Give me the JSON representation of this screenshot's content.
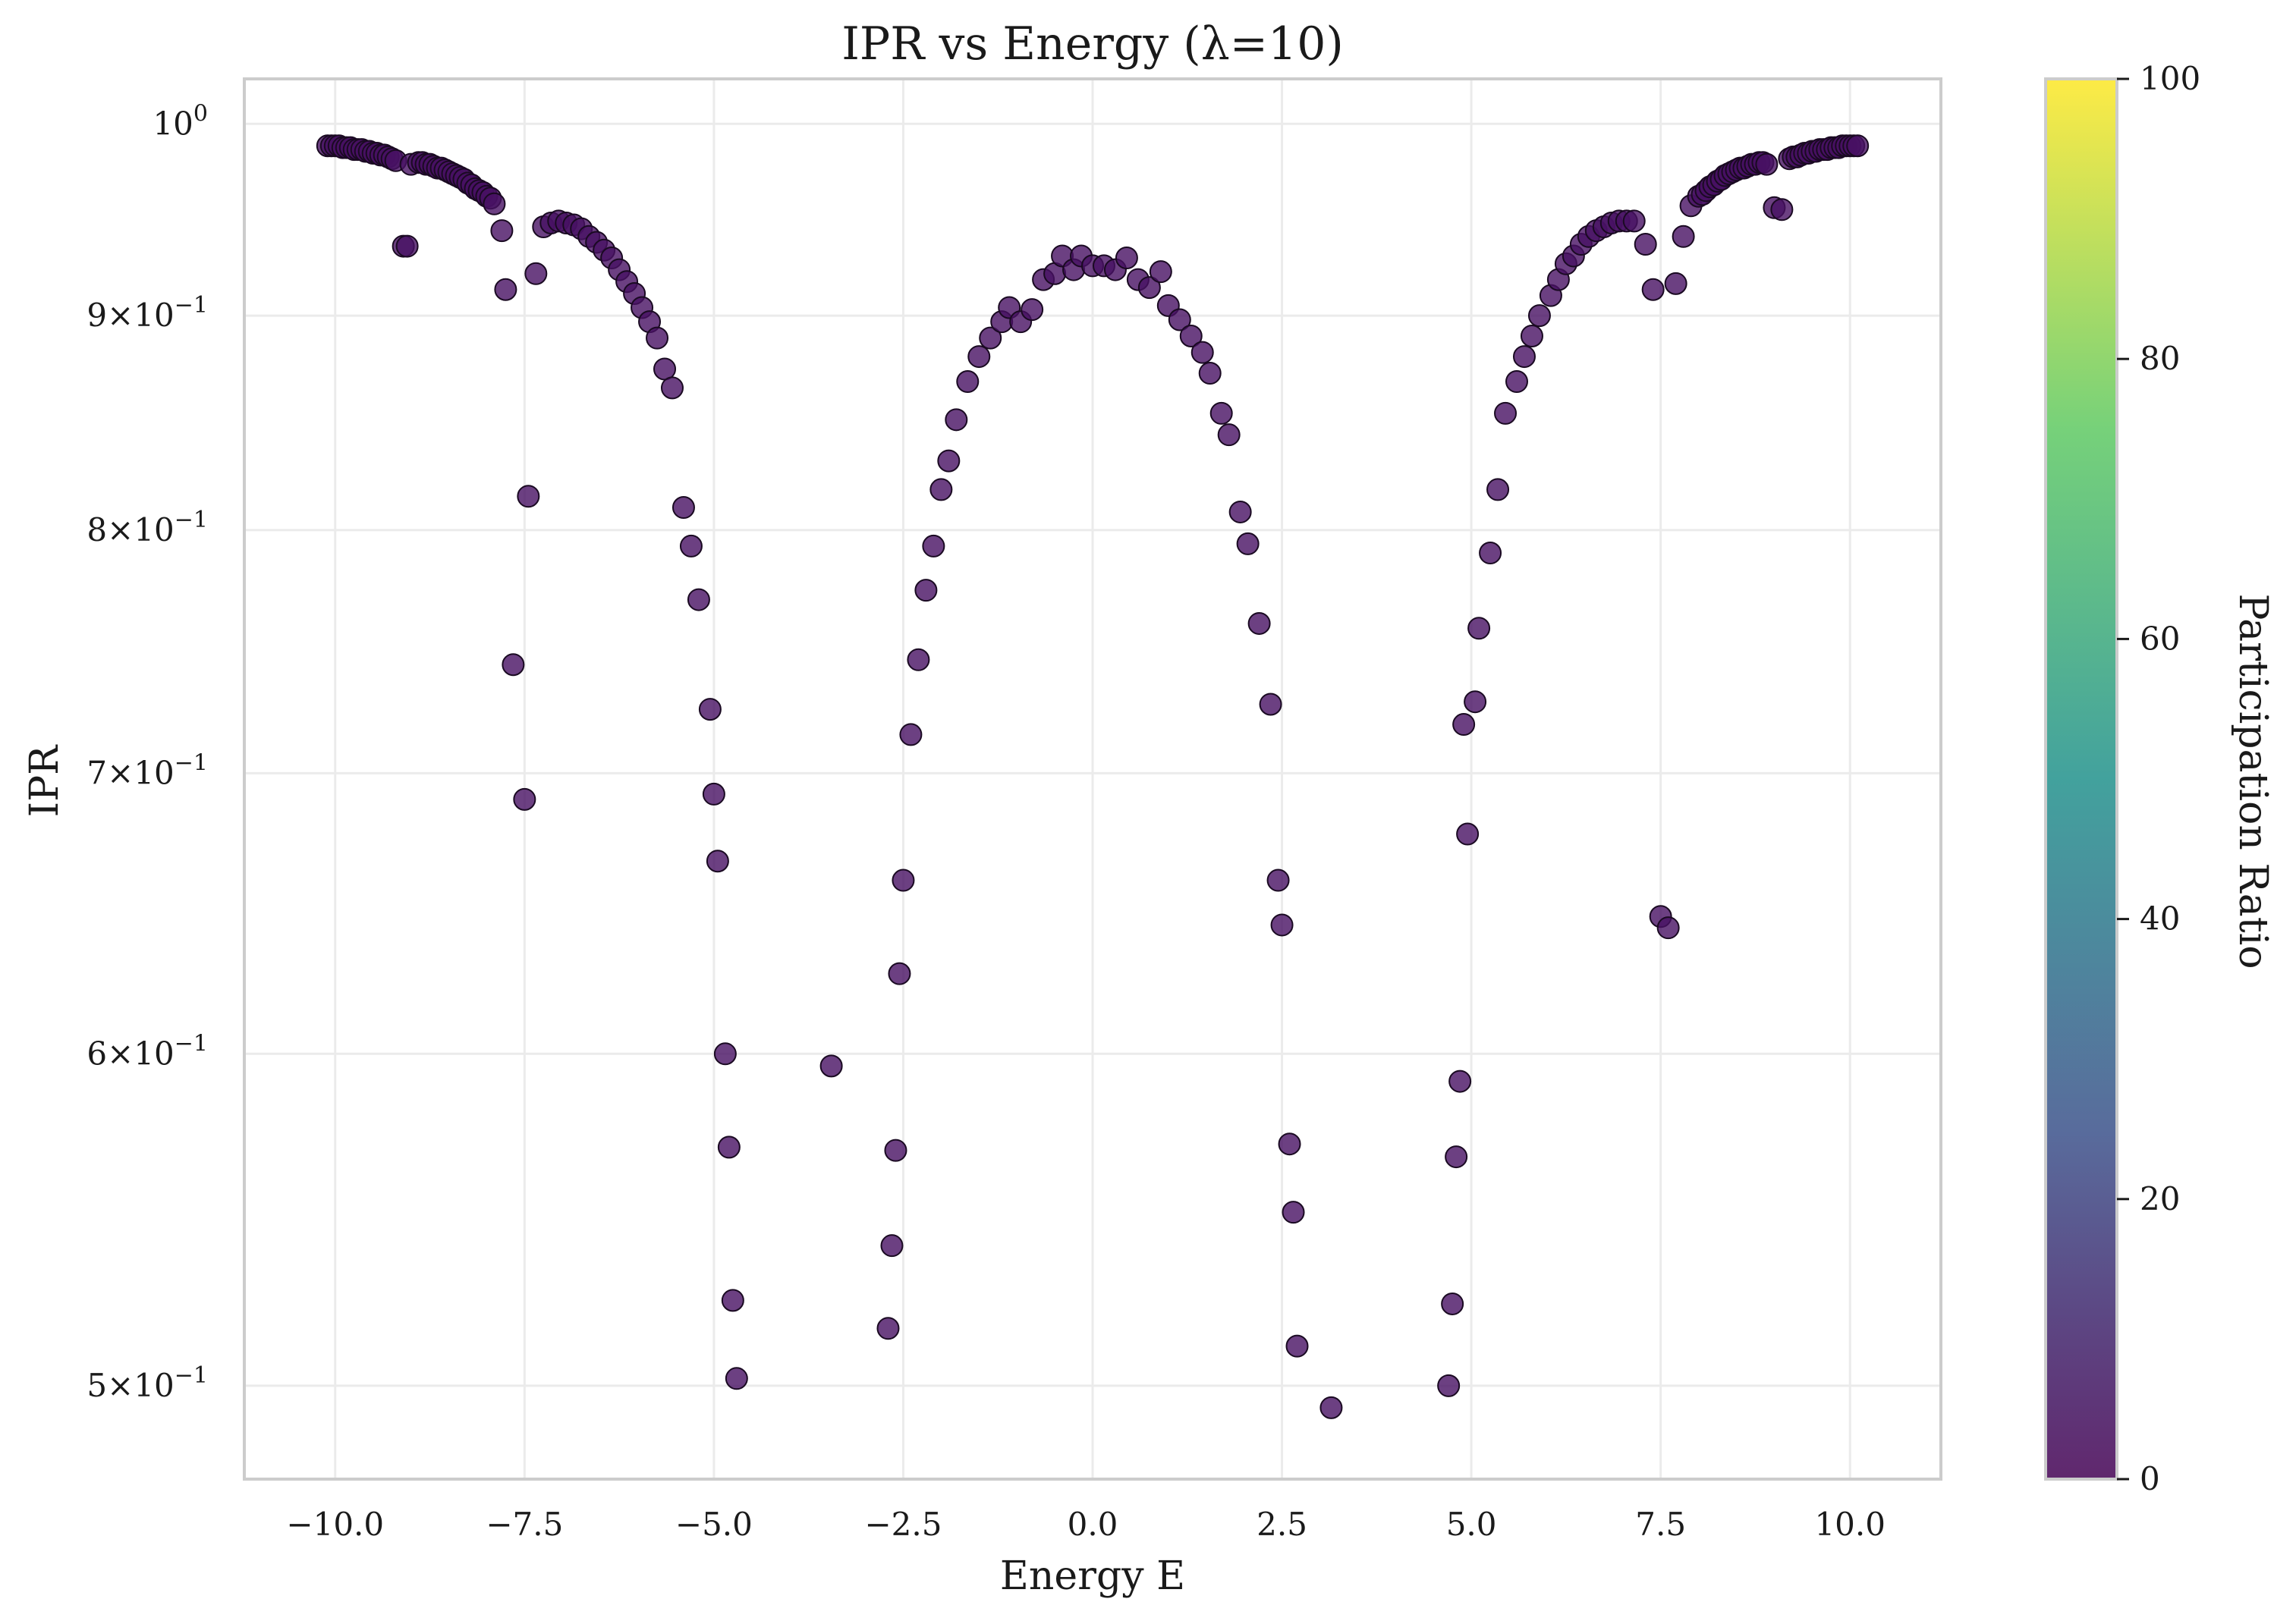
{
  "chart_data": {
    "type": "scatter",
    "title": "IPR vs Energy (λ=10)",
    "xlabel": "Energy E",
    "ylabel": "IPR",
    "colorbar_label": "Participation Ratio",
    "x_range": [
      -11.2,
      11.2
    ],
    "y_range": [
      0.475,
      1.025
    ],
    "y_scale": "log",
    "grid": true,
    "x_ticks": [
      -10.0,
      -7.5,
      -5.0,
      -2.5,
      0.0,
      2.5,
      5.0,
      7.5,
      10.0
    ],
    "x_tick_labels": [
      "−10.0",
      "−7.5",
      "−5.0",
      "−2.5",
      "0.0",
      "2.5",
      "5.0",
      "7.5",
      "10.0"
    ],
    "y_ticks": [
      {
        "value": 1.0,
        "mantissa": "10",
        "exponent": "0",
        "factor": ""
      },
      {
        "value": 0.9,
        "mantissa": "9×10",
        "exponent": "−1",
        "factor": "9"
      },
      {
        "value": 0.8,
        "mantissa": "8×10",
        "exponent": "−1",
        "factor": "8"
      },
      {
        "value": 0.7,
        "mantissa": "7×10",
        "exponent": "−1",
        "factor": "7"
      },
      {
        "value": 0.6,
        "mantissa": "6×10",
        "exponent": "−1",
        "factor": "6"
      },
      {
        "value": 0.5,
        "mantissa": "5×10",
        "exponent": "−1",
        "factor": "5"
      }
    ],
    "colorbar_range": [
      0,
      100
    ],
    "colorbar_ticks": [
      "0",
      "20",
      "40",
      "60",
      "80",
      "100"
    ],
    "colormap": [
      "#440154",
      "#3b528b",
      "#21918c",
      "#5ec962",
      "#fde725"
    ],
    "marker_color": "#471063",
    "marker_edge_color": "#1a0a22",
    "series": [
      {
        "points": [
          [
            -10.1,
            0.988
          ],
          [
            -10.05,
            0.988
          ],
          [
            -10.0,
            0.988
          ],
          [
            -9.95,
            0.988
          ],
          [
            -9.9,
            0.987
          ],
          [
            -9.85,
            0.987
          ],
          [
            -9.8,
            0.987
          ],
          [
            -9.75,
            0.986
          ],
          [
            -9.7,
            0.986
          ],
          [
            -9.65,
            0.986
          ],
          [
            -9.6,
            0.985
          ],
          [
            -9.55,
            0.985
          ],
          [
            -9.5,
            0.984
          ],
          [
            -9.45,
            0.984
          ],
          [
            -9.4,
            0.983
          ],
          [
            -9.35,
            0.983
          ],
          [
            -9.3,
            0.982
          ],
          [
            -9.25,
            0.981
          ],
          [
            -9.2,
            0.98
          ],
          [
            -9.1,
            0.935
          ],
          [
            -9.05,
            0.935
          ],
          [
            -9.0,
            0.978
          ],
          [
            -8.9,
            0.979
          ],
          [
            -8.85,
            0.979
          ],
          [
            -8.8,
            0.978
          ],
          [
            -8.75,
            0.978
          ],
          [
            -8.7,
            0.977
          ],
          [
            -8.65,
            0.976
          ],
          [
            -8.6,
            0.976
          ],
          [
            -8.55,
            0.975
          ],
          [
            -8.5,
            0.974
          ],
          [
            -8.45,
            0.973
          ],
          [
            -8.4,
            0.972
          ],
          [
            -8.35,
            0.971
          ],
          [
            -8.3,
            0.97
          ],
          [
            -8.25,
            0.968
          ],
          [
            -8.2,
            0.967
          ],
          [
            -8.15,
            0.965
          ],
          [
            -8.1,
            0.964
          ],
          [
            -8.05,
            0.963
          ],
          [
            -8.0,
            0.961
          ],
          [
            -7.95,
            0.96
          ],
          [
            -7.9,
            0.957
          ],
          [
            -7.8,
            0.943
          ],
          [
            -7.75,
            0.913
          ],
          [
            -7.65,
            0.743
          ],
          [
            -7.5,
            0.69
          ],
          [
            -7.45,
            0.815
          ],
          [
            -7.35,
            0.921
          ],
          [
            -7.25,
            0.945
          ],
          [
            -7.15,
            0.947
          ],
          [
            -7.05,
            0.948
          ],
          [
            -6.95,
            0.947
          ],
          [
            -6.85,
            0.946
          ],
          [
            -6.75,
            0.944
          ],
          [
            -6.65,
            0.94
          ],
          [
            -6.55,
            0.937
          ],
          [
            -6.45,
            0.933
          ],
          [
            -6.35,
            0.929
          ],
          [
            -6.25,
            0.923
          ],
          [
            -6.15,
            0.917
          ],
          [
            -6.05,
            0.911
          ],
          [
            -5.95,
            0.904
          ],
          [
            -5.85,
            0.897
          ],
          [
            -5.75,
            0.889
          ],
          [
            -5.65,
            0.874
          ],
          [
            -5.55,
            0.865
          ],
          [
            -5.4,
            0.81
          ],
          [
            -5.3,
            0.793
          ],
          [
            -5.2,
            0.77
          ],
          [
            -5.05,
            0.725
          ],
          [
            -5.0,
            0.692
          ],
          [
            -4.95,
            0.667
          ],
          [
            -4.85,
            0.6
          ],
          [
            -4.8,
            0.57
          ],
          [
            -4.75,
            0.524
          ],
          [
            -4.7,
            0.502
          ],
          [
            -3.45,
            0.596
          ],
          [
            -2.7,
            0.516
          ],
          [
            -2.65,
            0.54
          ],
          [
            -2.6,
            0.569
          ],
          [
            -2.55,
            0.627
          ],
          [
            -2.5,
            0.66
          ],
          [
            -2.4,
            0.715
          ],
          [
            -2.3,
            0.745
          ],
          [
            -2.2,
            0.774
          ],
          [
            -2.1,
            0.793
          ],
          [
            -2.0,
            0.818
          ],
          [
            -1.9,
            0.831
          ],
          [
            -1.8,
            0.85
          ],
          [
            -1.65,
            0.868
          ],
          [
            -1.5,
            0.88
          ],
          [
            -1.35,
            0.889
          ],
          [
            -1.2,
            0.897
          ],
          [
            -1.1,
            0.904
          ],
          [
            -0.95,
            0.897
          ],
          [
            -0.8,
            0.903
          ],
          [
            -0.65,
            0.918
          ],
          [
            -0.5,
            0.921
          ],
          [
            -0.4,
            0.93
          ],
          [
            -0.25,
            0.923
          ],
          [
            -0.15,
            0.93
          ],
          [
            0.0,
            0.925
          ],
          [
            0.15,
            0.925
          ],
          [
            0.3,
            0.923
          ],
          [
            0.45,
            0.929
          ],
          [
            0.6,
            0.918
          ],
          [
            0.75,
            0.914
          ],
          [
            0.9,
            0.922
          ],
          [
            1.0,
            0.905
          ],
          [
            1.15,
            0.898
          ],
          [
            1.3,
            0.89
          ],
          [
            1.45,
            0.882
          ],
          [
            1.55,
            0.872
          ],
          [
            1.7,
            0.853
          ],
          [
            1.8,
            0.843
          ],
          [
            1.95,
            0.808
          ],
          [
            2.05,
            0.794
          ],
          [
            2.2,
            0.76
          ],
          [
            2.35,
            0.727
          ],
          [
            2.45,
            0.66
          ],
          [
            2.5,
            0.644
          ],
          [
            2.6,
            0.571
          ],
          [
            2.65,
            0.55
          ],
          [
            2.7,
            0.511
          ],
          [
            3.15,
            0.494
          ],
          [
            4.7,
            0.5
          ],
          [
            4.75,
            0.523
          ],
          [
            4.8,
            0.567
          ],
          [
            4.85,
            0.591
          ],
          [
            4.9,
            0.719
          ],
          [
            4.95,
            0.677
          ],
          [
            5.05,
            0.728
          ],
          [
            5.1,
            0.758
          ],
          [
            5.25,
            0.79
          ],
          [
            5.35,
            0.818
          ],
          [
            5.45,
            0.853
          ],
          [
            5.6,
            0.868
          ],
          [
            5.7,
            0.88
          ],
          [
            5.8,
            0.89
          ],
          [
            5.9,
            0.9
          ],
          [
            6.05,
            0.91
          ],
          [
            6.15,
            0.918
          ],
          [
            6.25,
            0.926
          ],
          [
            6.35,
            0.93
          ],
          [
            6.45,
            0.936
          ],
          [
            6.55,
            0.94
          ],
          [
            6.65,
            0.943
          ],
          [
            6.75,
            0.945
          ],
          [
            6.85,
            0.947
          ],
          [
            6.95,
            0.948
          ],
          [
            7.05,
            0.948
          ],
          [
            7.15,
            0.948
          ],
          [
            7.3,
            0.936
          ],
          [
            7.4,
            0.913
          ],
          [
            7.5,
            0.647
          ],
          [
            7.6,
            0.643
          ],
          [
            7.7,
            0.916
          ],
          [
            7.8,
            0.94
          ],
          [
            7.9,
            0.956
          ],
          [
            8.0,
            0.961
          ],
          [
            8.05,
            0.962
          ],
          [
            8.1,
            0.964
          ],
          [
            8.15,
            0.966
          ],
          [
            8.2,
            0.967
          ],
          [
            8.25,
            0.969
          ],
          [
            8.3,
            0.97
          ],
          [
            8.35,
            0.972
          ],
          [
            8.4,
            0.973
          ],
          [
            8.45,
            0.974
          ],
          [
            8.5,
            0.975
          ],
          [
            8.55,
            0.976
          ],
          [
            8.6,
            0.976
          ],
          [
            8.65,
            0.977
          ],
          [
            8.7,
            0.978
          ],
          [
            8.75,
            0.978
          ],
          [
            8.8,
            0.979
          ],
          [
            8.85,
            0.979
          ],
          [
            8.9,
            0.978
          ],
          [
            9.0,
            0.955
          ],
          [
            9.1,
            0.954
          ],
          [
            9.2,
            0.981
          ],
          [
            9.25,
            0.982
          ],
          [
            9.3,
            0.982
          ],
          [
            9.35,
            0.983
          ],
          [
            9.4,
            0.984
          ],
          [
            9.45,
            0.984
          ],
          [
            9.5,
            0.985
          ],
          [
            9.55,
            0.985
          ],
          [
            9.6,
            0.986
          ],
          [
            9.65,
            0.986
          ],
          [
            9.7,
            0.986
          ],
          [
            9.75,
            0.987
          ],
          [
            9.8,
            0.987
          ],
          [
            9.85,
            0.987
          ],
          [
            9.9,
            0.988
          ],
          [
            9.95,
            0.988
          ],
          [
            10.0,
            0.988
          ],
          [
            10.05,
            0.988
          ],
          [
            10.1,
            0.988
          ]
        ]
      }
    ]
  }
}
